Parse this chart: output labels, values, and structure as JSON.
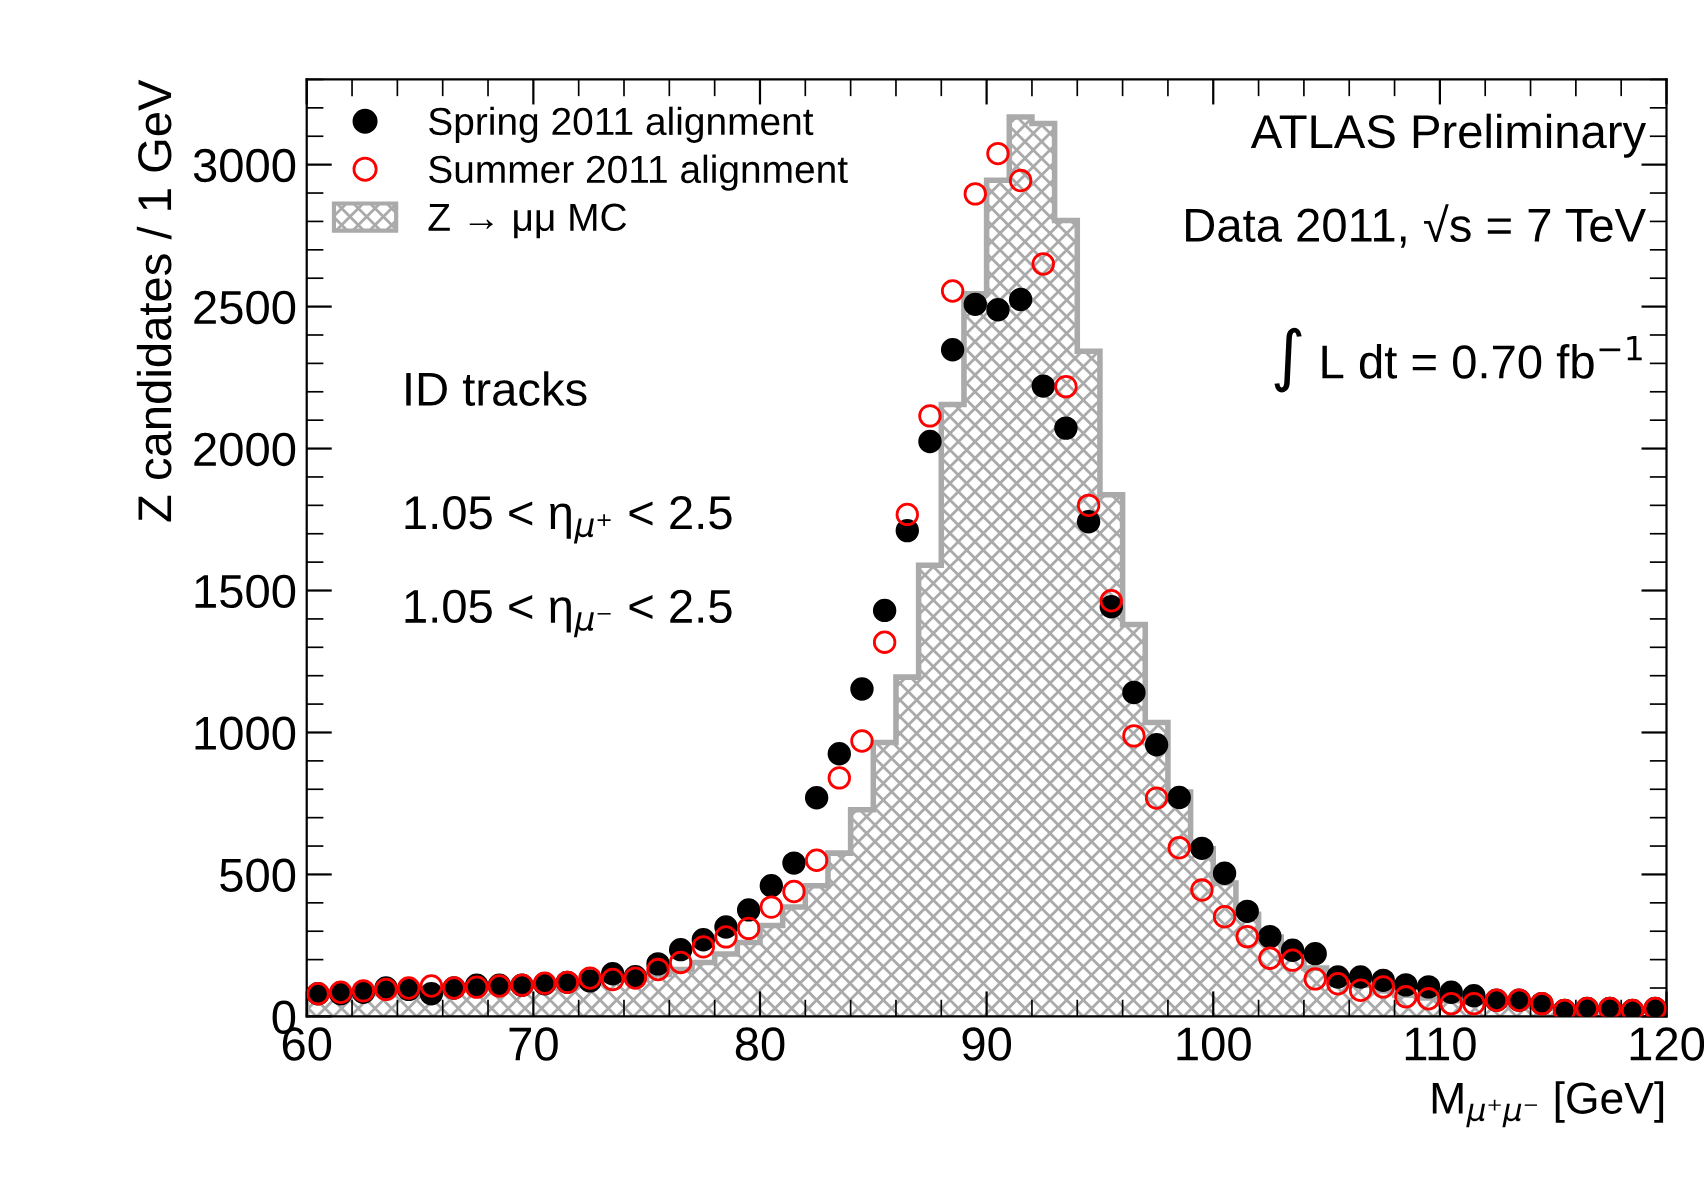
{
  "chart_data": {
    "type": "scatter",
    "xlabel": "M$_{μ⁺μ⁻}$ [GeV]",
    "ylabel": "Z candidates / 1 GeV",
    "xlim": [
      60,
      120
    ],
    "xticks": [
      60,
      70,
      80,
      90,
      100,
      110,
      120
    ],
    "ylim": [
      0,
      3300
    ],
    "yticks": [
      0,
      500,
      1000,
      1500,
      2000,
      2500,
      3000
    ],
    "grid": false,
    "legend": "top left",
    "annotations": [
      "ATLAS Preliminary",
      "Data 2011, √s = 7 TeV",
      "∫ L dt = 0.70 fb$^{−1}$",
      "ID tracks",
      "1.05 < η$_{μ⁺}$ < 2.5",
      "1.05 < η$_{μ⁻}$ < 2.5"
    ],
    "series": [
      {
        "name": "Spring 2011 alignment",
        "color": "#000000",
        "marker": "circle",
        "x": [
          60.5,
          61.5,
          62.5,
          63.5,
          64.5,
          65.5,
          66.5,
          67.5,
          68.5,
          69.5,
          70.5,
          71.5,
          72.5,
          73.5,
          74.5,
          75.5,
          76.5,
          77.5,
          78.5,
          79.5,
          80.5,
          81.5,
          82.5,
          83.5,
          84.5,
          85.5,
          86.5,
          87.5,
          88.5,
          89.5,
          90.5,
          91.5,
          92.5,
          93.5,
          94.5,
          95.5,
          96.5,
          97.5,
          98.5,
          99.5,
          100.5,
          101.5,
          102.5,
          103.5,
          104.5,
          105.5,
          106.5,
          107.5,
          108.5,
          109.5,
          110.5,
          111.5,
          112.5,
          113.5,
          114.5,
          115.5,
          116.5,
          117.5,
          118.5,
          119.5
        ],
        "values": [
          80,
          80,
          85,
          100,
          95,
          80,
          100,
          110,
          110,
          110,
          115,
          120,
          125,
          150,
          140,
          185,
          235,
          270,
          315,
          375,
          460,
          540,
          770,
          925,
          1153,
          1430,
          1711,
          2025,
          2348,
          2508,
          2489,
          2525,
          2220,
          2072,
          1742,
          1443,
          1141,
          957,
          771,
          592,
          504,
          370,
          281,
          233,
          221,
          139,
          139,
          127,
          111,
          104,
          85,
          73,
          57,
          57,
          45,
          21,
          28,
          28,
          21,
          28
        ]
      },
      {
        "name": "Summer 2011 alignment",
        "color": "#ff0000",
        "marker": "circle",
        "x": [
          60.5,
          61.5,
          62.5,
          63.5,
          64.5,
          65.5,
          66.5,
          67.5,
          68.5,
          69.5,
          70.5,
          71.5,
          72.5,
          73.5,
          74.5,
          75.5,
          76.5,
          77.5,
          78.5,
          79.5,
          80.5,
          81.5,
          82.5,
          83.5,
          84.5,
          85.5,
          86.5,
          87.5,
          88.5,
          89.5,
          90.5,
          91.5,
          92.5,
          93.5,
          94.5,
          95.5,
          96.5,
          97.5,
          98.5,
          99.5,
          100.5,
          101.5,
          102.5,
          103.5,
          104.5,
          105.5,
          106.5,
          107.5,
          108.5,
          109.5,
          110.5,
          111.5,
          112.5,
          113.5,
          114.5,
          115.5,
          116.5,
          117.5,
          118.5,
          119.5
        ],
        "values": [
          80,
          85,
          90,
          95,
          100,
          107,
          100,
          103,
          107,
          110,
          117,
          120,
          135,
          130,
          135,
          165,
          190,
          245,
          280,
          310,
          385,
          440,
          550,
          840,
          970,
          1318,
          1768,
          2115,
          2555,
          2897,
          3039,
          2944,
          2650,
          2218,
          1800,
          1464,
          988,
          769,
          594,
          445,
          351,
          281,
          205,
          198,
          132,
          115,
          92,
          104,
          69,
          62,
          45,
          45,
          57,
          57,
          45,
          21,
          28,
          28,
          21,
          28
        ]
      },
      {
        "name": "Z → μμ MC",
        "type": "histogram",
        "color": "#aaaaaa",
        "bins": [
          60,
          61,
          62,
          63,
          64,
          65,
          66,
          67,
          68,
          69,
          70,
          71,
          72,
          73,
          74,
          75,
          76,
          77,
          78,
          79,
          80,
          81,
          82,
          83,
          84,
          85,
          86,
          87,
          88,
          89,
          90,
          91,
          92,
          93,
          94,
          95,
          96,
          97,
          98,
          99,
          100,
          101,
          102,
          103,
          104,
          105,
          106,
          107,
          108,
          109,
          110,
          111,
          112,
          113,
          114,
          115,
          116,
          117,
          118,
          119,
          120
        ],
        "values": [
          75,
          78,
          80,
          83,
          86,
          90,
          93,
          97,
          100,
          105,
          110,
          115,
          120,
          127,
          135,
          148,
          165,
          190,
          220,
          260,
          320,
          385,
          460,
          575,
          728,
          965,
          1195,
          1589,
          2155,
          2545,
          2945,
          3168,
          3145,
          2803,
          2343,
          1837,
          1380,
          1035,
          790,
          590,
          470,
          360,
          280,
          215,
          170,
          135,
          110,
          90,
          75,
          65,
          55,
          50,
          45,
          40,
          35,
          30,
          28,
          25,
          22,
          20
        ]
      }
    ]
  }
}
